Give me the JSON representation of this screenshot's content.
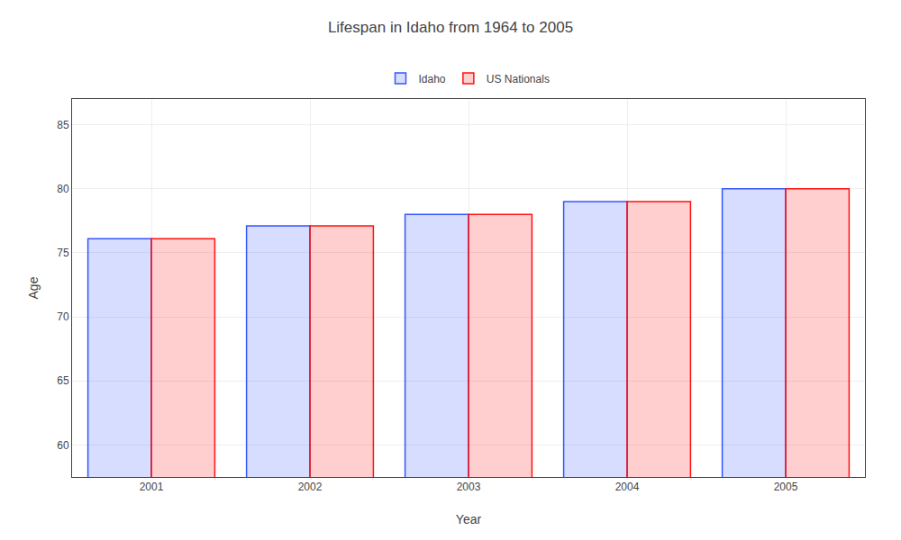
{
  "chart_data": {
    "type": "bar",
    "title": "Lifespan in Idaho from 1964 to 2005",
    "xlabel": "Year",
    "ylabel": "Age",
    "categories": [
      "2001",
      "2002",
      "2003",
      "2004",
      "2005"
    ],
    "series": [
      {
        "name": "Idaho",
        "color": "#3355ff",
        "values": [
          76.1,
          77.1,
          78.0,
          79.0,
          80.0
        ]
      },
      {
        "name": "US Nationals",
        "color": "#ff1111",
        "values": [
          76.1,
          77.1,
          78.0,
          79.0,
          80.0
        ]
      }
    ],
    "ylim": [
      57.5,
      87
    ],
    "yticks": [
      60,
      65,
      70,
      75,
      80,
      85
    ],
    "grid": true,
    "legend": "top"
  }
}
